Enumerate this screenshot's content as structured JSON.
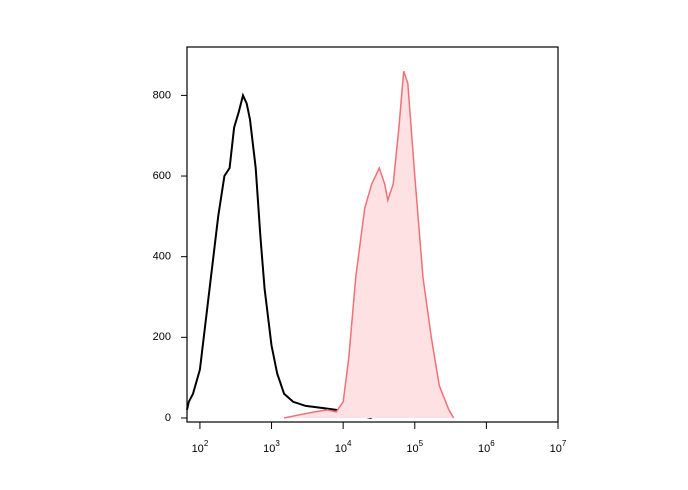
{
  "chart_data": {
    "type": "histogram-overlay",
    "xscale": "log",
    "xlim": [
      66,
      10000000
    ],
    "ylim": [
      -10,
      920
    ],
    "xticks": [
      {
        "value": 100,
        "label": "10",
        "sup": "2"
      },
      {
        "value": 1000,
        "label": "10",
        "sup": "3"
      },
      {
        "value": 10000,
        "label": "10",
        "sup": "4"
      },
      {
        "value": 100000,
        "label": "10",
        "sup": "5"
      },
      {
        "value": 1000000,
        "label": "10",
        "sup": "6"
      },
      {
        "value": 10000000,
        "label": "10",
        "sup": "7"
      }
    ],
    "yticks": [
      0,
      200,
      400,
      600,
      800
    ],
    "series": [
      {
        "color": "#000000",
        "fill": "none",
        "x": [
          66,
          70,
          80,
          100,
          130,
          180,
          220,
          260,
          300,
          350,
          400,
          450,
          500,
          600,
          700,
          800,
          1000,
          1200,
          1500,
          2000,
          3000,
          5000,
          8000,
          12000,
          18000,
          25000
        ],
        "values": [
          20,
          40,
          60,
          120,
          290,
          500,
          600,
          620,
          720,
          760,
          800,
          780,
          740,
          620,
          450,
          320,
          180,
          110,
          60,
          40,
          30,
          25,
          20,
          12,
          5,
          0
        ]
      },
      {
        "color": "#f07078",
        "fill": "#fde1e3",
        "x": [
          1500,
          2500,
          4000,
          6000,
          8000,
          10000,
          12000,
          15000,
          20000,
          25000,
          32000,
          38000,
          42000,
          50000,
          60000,
          70000,
          80000,
          100000,
          130000,
          170000,
          220000,
          300000,
          350000
        ],
        "values": [
          0,
          8,
          15,
          20,
          15,
          40,
          150,
          350,
          520,
          580,
          620,
          580,
          540,
          580,
          720,
          860,
          830,
          600,
          350,
          200,
          80,
          20,
          0
        ]
      }
    ]
  }
}
